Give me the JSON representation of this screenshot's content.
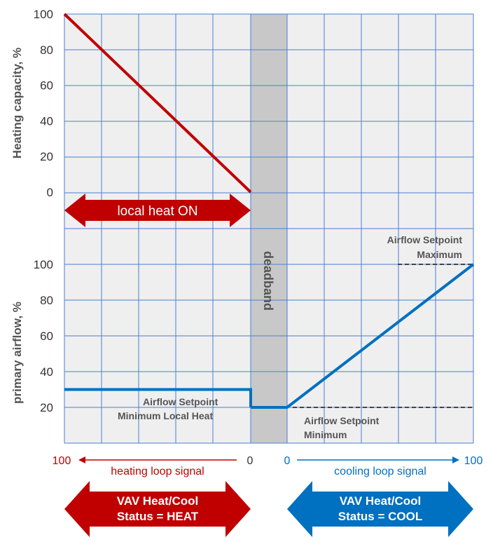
{
  "colors": {
    "heat": "#c00000",
    "cool": "#0070c0",
    "grid": "#4a7fd6",
    "plot_bg": "#efefef",
    "deadband": "#c8c8c8",
    "dashed": "#444444"
  },
  "chart_data": {
    "type": "line",
    "top_panel": {
      "ylabel": "Heating capacity, %",
      "yticks": [
        "100",
        "80",
        "60",
        "40",
        "20",
        "0"
      ],
      "ylim": [
        0,
        100
      ],
      "series": [
        {
          "color": "heat",
          "x": [
            100,
            0
          ],
          "y": [
            100,
            0
          ],
          "side": "heating"
        }
      ]
    },
    "bottom_panel": {
      "ylabel": "primary airflow, %",
      "yticks": [
        "100",
        "80",
        "60",
        "40",
        "20"
      ],
      "ylim": [
        20,
        100
      ],
      "heating_series": {
        "color": "cool",
        "x": [
          100,
          0
        ],
        "y": [
          30,
          30
        ]
      },
      "cooling_series": {
        "color": "cool",
        "x": [
          0,
          0,
          100
        ],
        "y": [
          20,
          20,
          100
        ]
      },
      "setpoint_maximum": 100,
      "setpoint_minimum": 20,
      "setpoint_min_local_heat": 30
    },
    "deadband_label": "deadband",
    "annotations": {
      "max_line1": "Airflow Setpoint",
      "max_line2": "Maximum",
      "min_heat_line1": "Airflow Setpoint",
      "min_heat_line2": "Minimum Local Heat",
      "min_line1": "Airflow Setpoint",
      "min_line2": "Minimum"
    },
    "local_heat_label": "local heat ON",
    "heating_axis": {
      "left": "100",
      "right": "0",
      "label": "heating loop signal"
    },
    "cooling_axis": {
      "left": "0",
      "right": "100",
      "label": "cooling loop signal"
    },
    "status_heat": {
      "line1": "VAV Heat/Cool",
      "line2": "Status = HEAT"
    },
    "status_cool": {
      "line1": "VAV Heat/Cool",
      "line2": "Status = COOL"
    }
  }
}
